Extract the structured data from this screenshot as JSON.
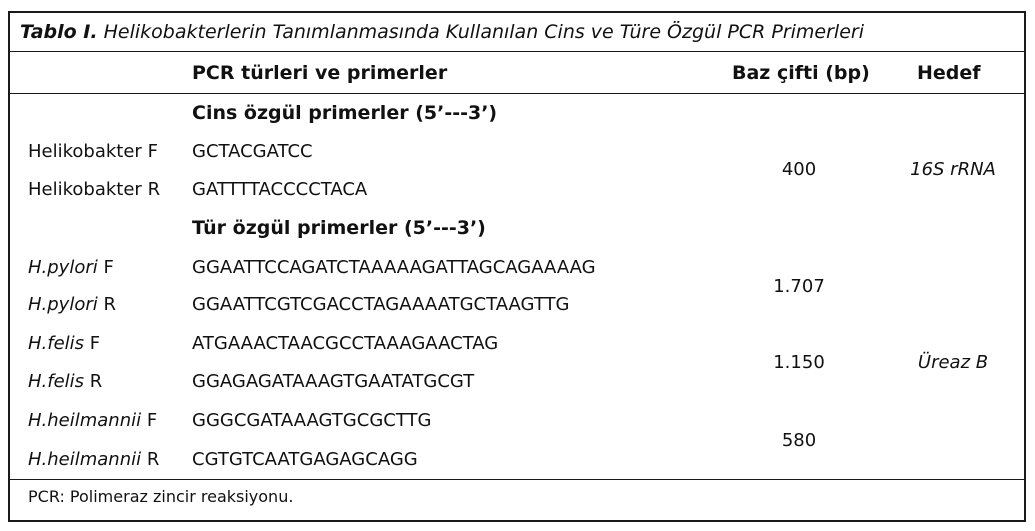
{
  "table": {
    "caption_label": "Tablo I.",
    "caption_text": " Helikobakterlerin Tanımlanmasında Kullanılan Cins ve Türe Özgül PCR Primerleri",
    "headers": {
      "primers": "PCR türleri ve primerler",
      "bp": "Baz çifti (bp)",
      "target": "Hedef"
    },
    "sections": [
      {
        "title": "Cins özgül primerler (5’---3’)",
        "rows": [
          {
            "species": "Helikobakter",
            "dir": "F",
            "seq": "GCTACGATCC"
          },
          {
            "species": "Helikobakter",
            "dir": "R",
            "seq": "GATTTTACCCCTACA"
          }
        ]
      },
      {
        "title": "Tür özgül primerler (5’---3’)",
        "rows": [
          {
            "species": "H.pylori",
            "dir": "F",
            "seq": "GGAATTCCAGATCTAAAAAGATTAGCAGAAAAG"
          },
          {
            "species": "H.pylori",
            "dir": "R",
            "seq": "GGAATTCGTCGACCTAGAAAATGCTAAGTTG"
          },
          {
            "species": "H.felis",
            "dir": "F",
            "seq": "ATGAAACTAACGCCTAAAGAACTAG"
          },
          {
            "species": "H.felis",
            "dir": "R",
            "seq": "GGAGAGATAAAGTGAATATGCGT"
          },
          {
            "species": "H.heilmannii",
            "dir": "F",
            "seq": "GGGCGATAAAGTGCGCTTG"
          },
          {
            "species": "H.heilmannii",
            "dir": "R",
            "seq": "CGTGTCAATGAGAGCAGG"
          }
        ]
      }
    ],
    "bp_values": [
      "400",
      "1.707",
      "1.150",
      "580"
    ],
    "targets": [
      "16S rRNA",
      "Üreaz B"
    ],
    "footnote": "PCR: Polimeraz zincir reaksiyonu."
  }
}
